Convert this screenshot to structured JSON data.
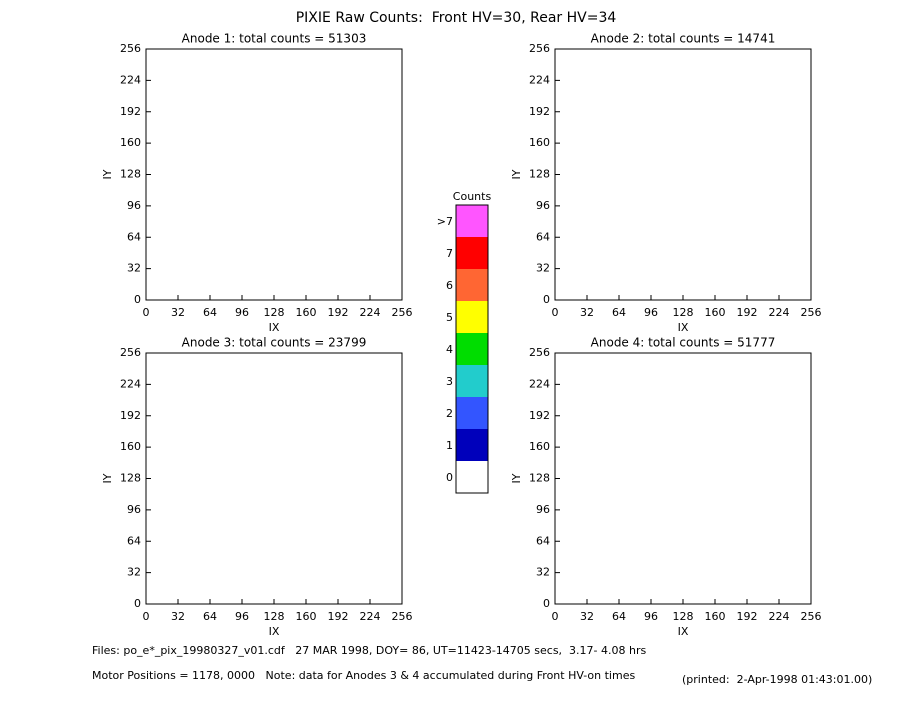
{
  "title": "PIXIE Raw Counts:  Front HV=30, Rear HV=34",
  "footer": {
    "files": "Files: po_e*_pix_19980327_v01.cdf   27 MAR 1998, DOY= 86, UT=11423-14705 secs,  3.17- 4.08 hrs",
    "motor": "Motor Positions = 1178, 0000   Note: data for Anodes 3 & 4 accumulated during Front HV-on times",
    "printed": "(printed:  2-Apr-1998 01:43:01.00)"
  },
  "colorbar": {
    "title": "Counts",
    "categories": [
      ">7",
      "7",
      "6",
      "5",
      "4",
      "3",
      "2",
      "1",
      "0"
    ],
    "colors": [
      "#ff55ff",
      "#ff0000",
      "#ff6633",
      "#ffff00",
      "#00dd00",
      "#22cccc",
      "#3355ff",
      "#0000bb",
      "#ffffff"
    ]
  },
  "chart_data": [
    {
      "type": "heatmap",
      "title": "Anode 1: total counts = 51303",
      "x_label": "IX",
      "y_label": "IY",
      "xlim": [
        0,
        256
      ],
      "ylim": [
        0,
        256
      ],
      "xticks": [
        0,
        32,
        64,
        96,
        128,
        160,
        192,
        224,
        256
      ],
      "yticks": [
        0,
        32,
        64,
        96,
        128,
        160,
        192,
        224,
        256
      ]
    },
    {
      "type": "heatmap",
      "title": "Anode 2: total counts = 14741",
      "x_label": "IX",
      "y_label": "IY",
      "xlim": [
        0,
        256
      ],
      "ylim": [
        0,
        256
      ],
      "xticks": [
        0,
        32,
        64,
        96,
        128,
        160,
        192,
        224,
        256
      ],
      "yticks": [
        0,
        32,
        64,
        96,
        128,
        160,
        192,
        224,
        256
      ]
    },
    {
      "type": "heatmap",
      "title": "Anode 3: total counts = 23799",
      "x_label": "IX",
      "y_label": "IY",
      "xlim": [
        0,
        256
      ],
      "ylim": [
        0,
        256
      ],
      "xticks": [
        0,
        32,
        64,
        96,
        128,
        160,
        192,
        224,
        256
      ],
      "yticks": [
        0,
        32,
        64,
        96,
        128,
        160,
        192,
        224,
        256
      ]
    },
    {
      "type": "heatmap",
      "title": "Anode 4: total counts = 51777",
      "x_label": "IX",
      "y_label": "IY",
      "xlim": [
        0,
        256
      ],
      "ylim": [
        0,
        256
      ],
      "xticks": [
        0,
        32,
        64,
        96,
        128,
        160,
        192,
        224,
        256
      ],
      "yticks": [
        0,
        32,
        64,
        96,
        128,
        160,
        192,
        224,
        256
      ]
    }
  ]
}
